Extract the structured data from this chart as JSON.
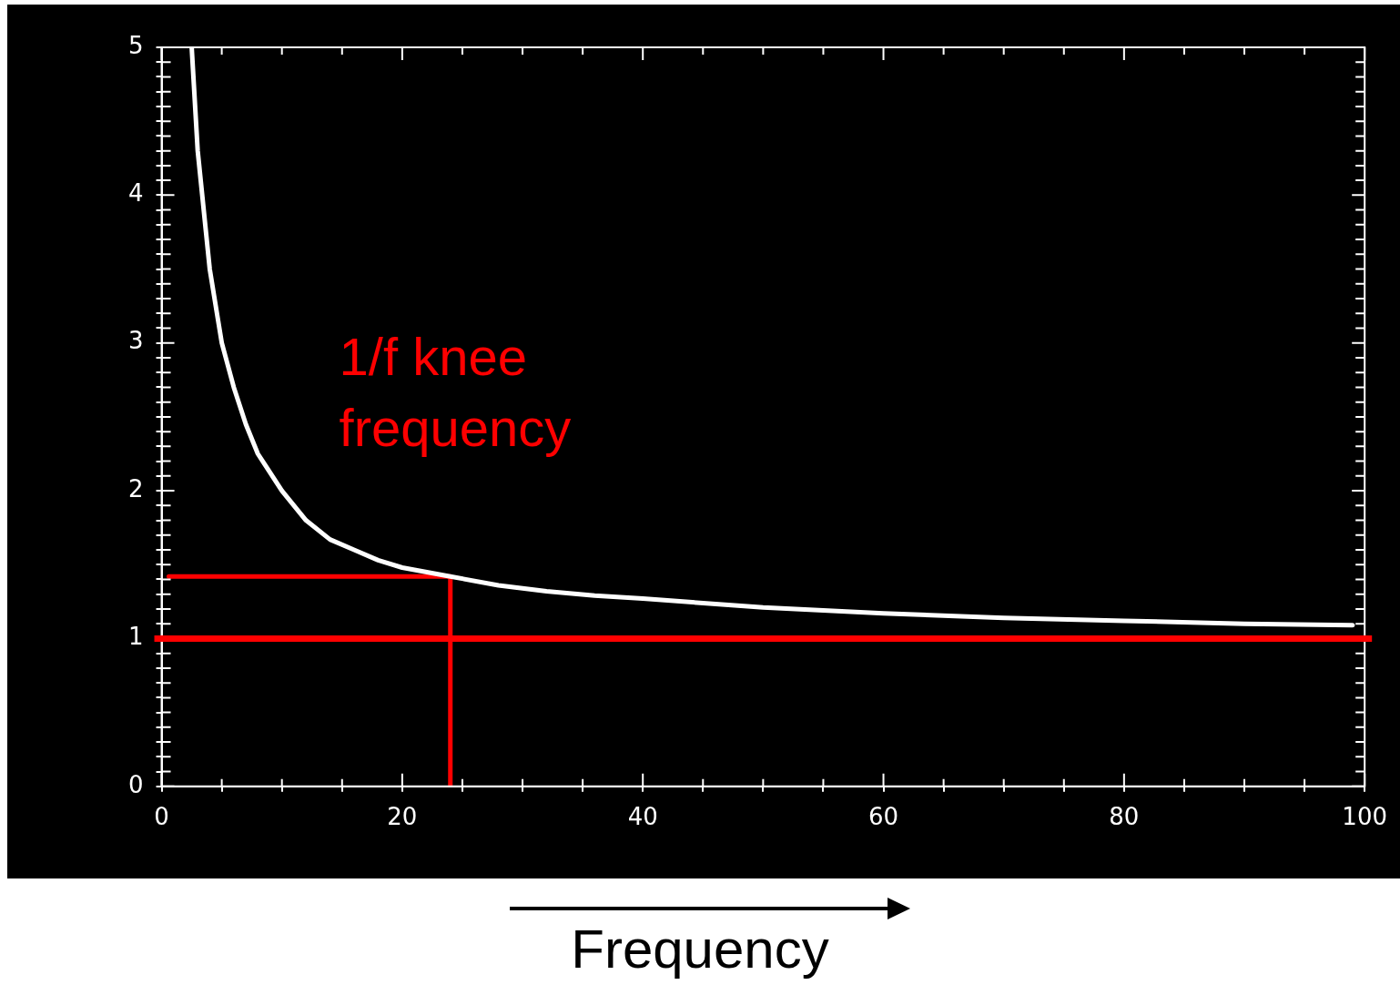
{
  "chart_data": {
    "type": "line",
    "xlabel": "Frequency",
    "annotations": [
      "1/f knee frequency"
    ],
    "xlim": [
      0,
      100
    ],
    "ylim": [
      0,
      5
    ],
    "xticks": [
      0,
      {
        "value": 5,
        "label": null
      },
      {
        "value": 10,
        "label": null
      },
      {
        "value": 15,
        "label": null
      },
      20,
      {
        "value": 25,
        "label": null
      },
      {
        "value": 30,
        "label": null
      },
      {
        "value": 35,
        "label": null
      },
      40,
      {
        "value": 45,
        "label": null
      },
      {
        "value": 50,
        "label": null
      },
      {
        "value": 55,
        "label": null
      },
      60,
      {
        "value": 65,
        "label": null
      },
      {
        "value": 70,
        "label": null
      },
      {
        "value": 75,
        "label": null
      },
      80,
      {
        "value": 85,
        "label": null
      },
      {
        "value": 90,
        "label": null
      },
      {
        "value": 95,
        "label": null
      },
      100
    ],
    "yticks": [
      0,
      {
        "value": 0.1,
        "label": null
      },
      {
        "value": 0.2,
        "label": null
      },
      {
        "value": 0.3,
        "label": null
      },
      {
        "value": 0.4,
        "label": null
      },
      {
        "value": 0.5,
        "label": null
      },
      {
        "value": 0.6,
        "label": null
      },
      {
        "value": 0.7,
        "label": null
      },
      {
        "value": 0.8,
        "label": null
      },
      {
        "value": 0.9,
        "label": null
      },
      1,
      {
        "value": 1.1,
        "label": null
      },
      {
        "value": 1.2,
        "label": null
      },
      {
        "value": 1.3,
        "label": null
      },
      {
        "value": 1.4,
        "label": null
      },
      {
        "value": 1.5,
        "label": null
      },
      {
        "value": 1.6,
        "label": null
      },
      {
        "value": 1.7,
        "label": null
      },
      {
        "value": 1.8,
        "label": null
      },
      {
        "value": 1.9,
        "label": null
      },
      2,
      {
        "value": 2.1,
        "label": null
      },
      {
        "value": 2.2,
        "label": null
      },
      {
        "value": 2.3,
        "label": null
      },
      {
        "value": 2.4,
        "label": null
      },
      {
        "value": 2.5,
        "label": null
      },
      {
        "value": 2.6,
        "label": null
      },
      {
        "value": 2.7,
        "label": null
      },
      {
        "value": 2.8,
        "label": null
      },
      {
        "value": 2.9,
        "label": null
      },
      3,
      {
        "value": 3.1,
        "label": null
      },
      {
        "value": 3.2,
        "label": null
      },
      {
        "value": 3.3,
        "label": null
      },
      {
        "value": 3.4,
        "label": null
      },
      {
        "value": 3.5,
        "label": null
      },
      {
        "value": 3.6,
        "label": null
      },
      {
        "value": 3.7,
        "label": null
      },
      {
        "value": 3.8,
        "label": null
      },
      {
        "value": 3.9,
        "label": null
      },
      4,
      {
        "value": 4.1,
        "label": null
      },
      {
        "value": 4.2,
        "label": null
      },
      {
        "value": 4.3,
        "label": null
      },
      {
        "value": 4.4,
        "label": null
      },
      {
        "value": 4.5,
        "label": null
      },
      {
        "value": 4.6,
        "label": null
      },
      {
        "value": 4.7,
        "label": null
      },
      {
        "value": 4.8,
        "label": null
      },
      {
        "value": 4.9,
        "label": null
      },
      5
    ],
    "series": [
      {
        "color": "#ffffff",
        "x": [
          2.5,
          3,
          4,
          5,
          6,
          7,
          8,
          10,
          12,
          14,
          16,
          18,
          20,
          24,
          28,
          32,
          36,
          40,
          50,
          60,
          70,
          80,
          90,
          99
        ],
        "values": [
          5.0,
          4.3,
          3.5,
          3.0,
          2.7,
          2.45,
          2.25,
          2.0,
          1.8,
          1.67,
          1.6,
          1.53,
          1.48,
          1.42,
          1.36,
          1.32,
          1.29,
          1.27,
          1.21,
          1.17,
          1.14,
          1.12,
          1.1,
          1.09
        ]
      },
      {
        "color": "#ff0000",
        "x": [
          0.6,
          24,
          24
        ],
        "values": [
          1.42,
          1.42,
          0
        ]
      }
    ],
    "ref_lines": [
      {
        "axis": "y",
        "value": 1,
        "color": "#ff0000"
      }
    ],
    "grid": false,
    "legend": false,
    "marker": "none",
    "line_style": "solid"
  }
}
